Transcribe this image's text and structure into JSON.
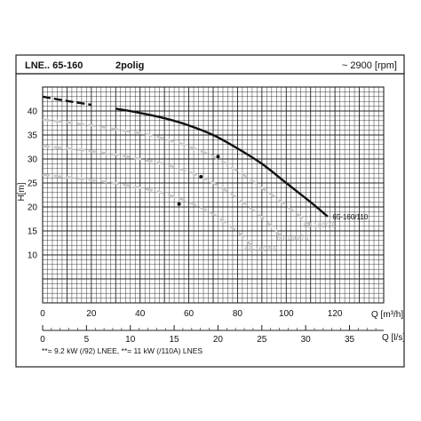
{
  "header": {
    "model": "LNE.. 65-160",
    "poles": "2polig",
    "speed": "~ 2900 [rpm]"
  },
  "footnote": "**= 9.2 kW (/92) LNEE, **= 11 kW (/110A) LNES",
  "chart_data": {
    "type": "line",
    "title": "",
    "ylabel": "H[m]",
    "xlabel": "Q [m³/h]",
    "x2label": "Q [l/s]",
    "xlim": [
      0,
      140
    ],
    "ylim": [
      0,
      45
    ],
    "x2lim": [
      0,
      38.9
    ],
    "xticks": [
      0,
      20,
      40,
      60,
      80,
      100,
      120
    ],
    "yticks": [
      10,
      15,
      20,
      25,
      30,
      35,
      40
    ],
    "x2ticks": [
      0,
      5,
      10,
      15,
      20,
      25,
      30,
      35
    ],
    "grid": true,
    "colors": {
      "main": "#111111",
      "secondary": "#c8c8c8",
      "grid": "#222222"
    },
    "series": [
      {
        "name": "65-160/110",
        "style": "solid-black",
        "label_at": [
          119,
          18
        ],
        "dash_to": 22,
        "x": [
          0,
          10,
          20,
          30,
          40,
          50,
          60,
          70,
          80,
          90,
          100,
          110,
          117
        ],
        "y": [
          43,
          42.1,
          41.3,
          40.5,
          39.6,
          38.5,
          37.0,
          35.0,
          32.2,
          29.0,
          25.0,
          21.0,
          18.0
        ]
      },
      {
        "name": "65-160/75",
        "style": "dashed-gray",
        "label_at": [
          107,
          16.2
        ],
        "x": [
          0,
          10,
          20,
          30,
          40,
          50,
          60,
          70,
          80,
          90,
          100,
          110
        ],
        "y": [
          38.2,
          37.6,
          37.0,
          36.2,
          35.4,
          34.2,
          32.6,
          30.5,
          27.5,
          24.0,
          20.3,
          16.3
        ]
      },
      {
        "name": "60-160/75",
        "style": "dashed-gray",
        "label_at": [
          96,
          13.6
        ],
        "x": [
          0,
          10,
          20,
          30,
          40,
          50,
          60,
          70,
          80,
          90,
          98
        ],
        "y": [
          32.7,
          32.2,
          31.6,
          30.9,
          30.0,
          28.9,
          27.3,
          25.0,
          21.8,
          17.8,
          13.8
        ]
      },
      {
        "name": "65-160/55",
        "style": "dashed-gray",
        "label_at": [
          83,
          11.3
        ],
        "x": [
          0,
          10,
          20,
          30,
          40,
          50,
          60,
          70,
          80,
          86
        ],
        "y": [
          26.7,
          26.2,
          25.6,
          24.9,
          24.0,
          22.8,
          21.0,
          18.5,
          14.8,
          11.8
        ]
      }
    ],
    "operating_points": [
      {
        "x": 72,
        "y": 30.5
      },
      {
        "x": 65,
        "y": 26.3
      },
      {
        "x": 56,
        "y": 20.6
      }
    ]
  }
}
